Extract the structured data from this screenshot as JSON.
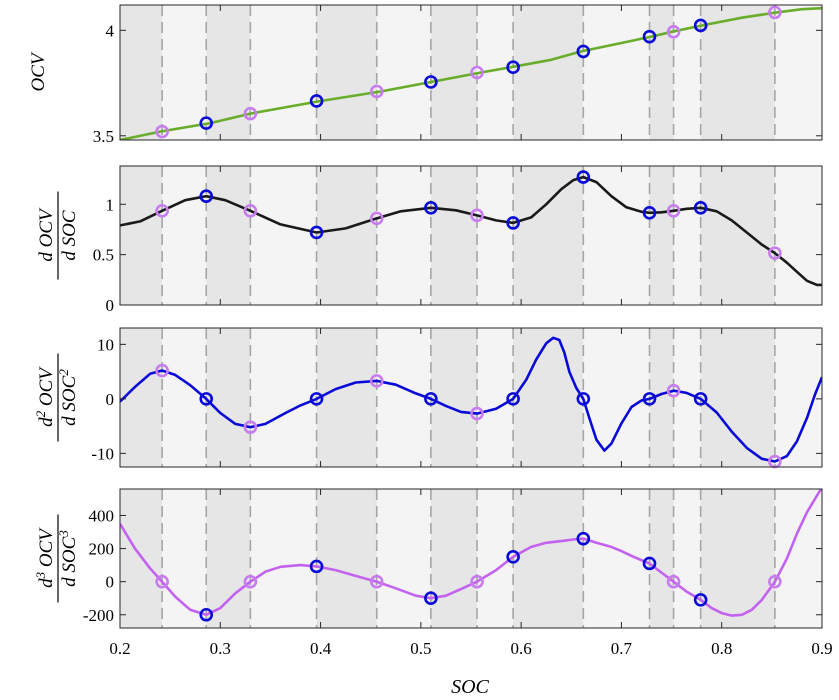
{
  "chart_data": [
    {
      "type": "line",
      "ylabel": "OCV",
      "ylabel_kind": "plain",
      "xlim": [
        0.2,
        0.9
      ],
      "ylim": [
        3.48,
        4.12
      ],
      "yticks": [
        3.5,
        4.0
      ],
      "ytick_labels": [
        "3.5",
        "4"
      ],
      "line_color": "#6aac2b",
      "curve_x": [
        0.2,
        0.24,
        0.29,
        0.33,
        0.4,
        0.46,
        0.51,
        0.56,
        0.59,
        0.63,
        0.66,
        0.7,
        0.73,
        0.75,
        0.78,
        0.82,
        0.855,
        0.88,
        0.9
      ],
      "curve_y": [
        3.48,
        3.52,
        3.56,
        3.605,
        3.665,
        3.71,
        3.755,
        3.8,
        3.825,
        3.86,
        3.9,
        3.94,
        3.97,
        3.993,
        4.023,
        4.06,
        4.085,
        4.1,
        4.105
      ],
      "markers": [
        {
          "x": 0.242,
          "y": 3.52,
          "color": "#c77cf0"
        },
        {
          "x": 0.286,
          "y": 3.56,
          "color": "#0a0ad8"
        },
        {
          "x": 0.33,
          "y": 3.605,
          "color": "#c77cf0"
        },
        {
          "x": 0.396,
          "y": 3.665,
          "color": "#0a0ad8"
        },
        {
          "x": 0.456,
          "y": 3.71,
          "color": "#c77cf0"
        },
        {
          "x": 0.51,
          "y": 3.755,
          "color": "#0a0ad8"
        },
        {
          "x": 0.556,
          "y": 3.8,
          "color": "#c77cf0"
        },
        {
          "x": 0.592,
          "y": 3.825,
          "color": "#0a0ad8"
        },
        {
          "x": 0.662,
          "y": 3.9,
          "color": "#0a0ad8"
        },
        {
          "x": 0.728,
          "y": 3.97,
          "color": "#0a0ad8"
        },
        {
          "x": 0.752,
          "y": 3.993,
          "color": "#c77cf0"
        },
        {
          "x": 0.779,
          "y": 4.023,
          "color": "#0a0ad8"
        },
        {
          "x": 0.853,
          "y": 4.085,
          "color": "#c77cf0"
        }
      ]
    },
    {
      "type": "line",
      "ylabel": "d OCV / d SOC",
      "ylabel_kind": "fraction",
      "ylabel_num": "d OCV",
      "ylabel_den": "d SOC",
      "ylabel_power": "",
      "xlim": [
        0.2,
        0.9
      ],
      "ylim": [
        0,
        1.38
      ],
      "yticks": [
        0,
        0.5,
        1
      ],
      "ytick_labels": [
        "0",
        "0.5",
        "1"
      ],
      "line_color": "#1a1a1a",
      "curve_x": [
        0.2,
        0.22,
        0.242,
        0.265,
        0.286,
        0.305,
        0.33,
        0.36,
        0.396,
        0.425,
        0.456,
        0.48,
        0.51,
        0.535,
        0.556,
        0.575,
        0.592,
        0.61,
        0.625,
        0.64,
        0.652,
        0.662,
        0.675,
        0.69,
        0.705,
        0.72,
        0.728,
        0.74,
        0.752,
        0.765,
        0.779,
        0.795,
        0.81,
        0.825,
        0.84,
        0.853,
        0.865,
        0.875,
        0.885,
        0.895,
        0.9
      ],
      "curve_y": [
        0.79,
        0.83,
        0.935,
        1.04,
        1.08,
        1.04,
        0.935,
        0.8,
        0.72,
        0.76,
        0.86,
        0.93,
        0.965,
        0.94,
        0.89,
        0.84,
        0.815,
        0.87,
        1.0,
        1.15,
        1.24,
        1.27,
        1.22,
        1.08,
        0.97,
        0.925,
        0.915,
        0.92,
        0.935,
        0.955,
        0.965,
        0.93,
        0.84,
        0.72,
        0.6,
        0.515,
        0.42,
        0.33,
        0.24,
        0.2,
        0.2
      ],
      "markers": [
        {
          "x": 0.242,
          "y": 0.935,
          "color": "#c77cf0"
        },
        {
          "x": 0.286,
          "y": 1.08,
          "color": "#0a0ad8"
        },
        {
          "x": 0.33,
          "y": 0.935,
          "color": "#c77cf0"
        },
        {
          "x": 0.396,
          "y": 0.72,
          "color": "#0a0ad8"
        },
        {
          "x": 0.456,
          "y": 0.86,
          "color": "#c77cf0"
        },
        {
          "x": 0.51,
          "y": 0.965,
          "color": "#0a0ad8"
        },
        {
          "x": 0.556,
          "y": 0.89,
          "color": "#c77cf0"
        },
        {
          "x": 0.592,
          "y": 0.815,
          "color": "#0a0ad8"
        },
        {
          "x": 0.662,
          "y": 1.27,
          "color": "#0a0ad8"
        },
        {
          "x": 0.728,
          "y": 0.915,
          "color": "#0a0ad8"
        },
        {
          "x": 0.752,
          "y": 0.935,
          "color": "#c77cf0"
        },
        {
          "x": 0.779,
          "y": 0.965,
          "color": "#0a0ad8"
        },
        {
          "x": 0.853,
          "y": 0.515,
          "color": "#c77cf0"
        }
      ]
    },
    {
      "type": "line",
      "ylabel": "d2 OCV / d SOC2",
      "ylabel_kind": "fraction",
      "ylabel_num": "d OCV",
      "ylabel_den": "d SOC",
      "ylabel_power": "2",
      "xlim": [
        0.2,
        0.9
      ],
      "ylim": [
        -12.5,
        13
      ],
      "yticks": [
        -10,
        0,
        10
      ],
      "ytick_labels": [
        "-10",
        "0",
        "10"
      ],
      "line_color": "#0a0ad8",
      "curve_x": [
        0.2,
        0.215,
        0.23,
        0.242,
        0.255,
        0.27,
        0.286,
        0.3,
        0.315,
        0.33,
        0.345,
        0.365,
        0.38,
        0.396,
        0.415,
        0.435,
        0.456,
        0.475,
        0.495,
        0.51,
        0.525,
        0.54,
        0.556,
        0.575,
        0.592,
        0.605,
        0.615,
        0.625,
        0.632,
        0.638,
        0.643,
        0.648,
        0.655,
        0.662,
        0.668,
        0.675,
        0.683,
        0.69,
        0.7,
        0.71,
        0.72,
        0.728,
        0.74,
        0.752,
        0.765,
        0.779,
        0.795,
        0.81,
        0.825,
        0.84,
        0.853,
        0.865,
        0.875,
        0.885,
        0.893,
        0.9
      ],
      "curve_y": [
        -0.5,
        2.2,
        4.6,
        5.2,
        4.4,
        2.5,
        0,
        -2.6,
        -4.6,
        -5.2,
        -4.6,
        -2.6,
        -1.2,
        0,
        1.8,
        3.0,
        3.3,
        2.6,
        1.0,
        0,
        -1.3,
        -2.4,
        -2.7,
        -1.8,
        0,
        3.5,
        7.2,
        10.2,
        11.2,
        10.8,
        8.5,
        5.0,
        2.0,
        0,
        -3.5,
        -7.5,
        -9.5,
        -8.2,
        -4.5,
        -1.5,
        -0.3,
        0,
        0.9,
        1.5,
        1.1,
        0,
        -2.5,
        -6.0,
        -9.0,
        -11.0,
        -11.5,
        -10.5,
        -7.8,
        -3.5,
        0.8,
        4.0
      ],
      "markers": [
        {
          "x": 0.242,
          "y": 5.2,
          "color": "#c77cf0"
        },
        {
          "x": 0.286,
          "y": 0,
          "color": "#0a0ad8"
        },
        {
          "x": 0.33,
          "y": -5.2,
          "color": "#c77cf0"
        },
        {
          "x": 0.396,
          "y": 0,
          "color": "#0a0ad8"
        },
        {
          "x": 0.456,
          "y": 3.3,
          "color": "#c77cf0"
        },
        {
          "x": 0.51,
          "y": 0,
          "color": "#0a0ad8"
        },
        {
          "x": 0.556,
          "y": -2.7,
          "color": "#c77cf0"
        },
        {
          "x": 0.592,
          "y": 0,
          "color": "#0a0ad8"
        },
        {
          "x": 0.662,
          "y": 0,
          "color": "#0a0ad8"
        },
        {
          "x": 0.728,
          "y": 0,
          "color": "#0a0ad8"
        },
        {
          "x": 0.752,
          "y": 1.5,
          "color": "#c77cf0"
        },
        {
          "x": 0.779,
          "y": 0,
          "color": "#0a0ad8"
        },
        {
          "x": 0.853,
          "y": -11.5,
          "color": "#c77cf0"
        }
      ]
    },
    {
      "type": "line",
      "ylabel": "d3 OCV / d SOC3",
      "ylabel_kind": "fraction",
      "ylabel_num": "d OCV",
      "ylabel_den": "d SOC",
      "ylabel_power": "3",
      "xlim": [
        0.2,
        0.9
      ],
      "ylim": [
        -280,
        560
      ],
      "yticks": [
        -200,
        0,
        200,
        400
      ],
      "ytick_labels": [
        "-200",
        "0",
        "200",
        "400"
      ],
      "xticks": [
        0.2,
        0.3,
        0.4,
        0.5,
        0.6,
        0.7,
        0.8,
        0.9
      ],
      "xtick_labels": [
        "0.2",
        "0.3",
        "0.4",
        "0.5",
        "0.6",
        "0.7",
        "0.8",
        "0.9"
      ],
      "xlabel": "SOC",
      "line_color": "#c462f0",
      "curve_x": [
        0.2,
        0.215,
        0.23,
        0.242,
        0.255,
        0.27,
        0.286,
        0.3,
        0.315,
        0.33,
        0.345,
        0.36,
        0.38,
        0.396,
        0.415,
        0.435,
        0.456,
        0.475,
        0.495,
        0.51,
        0.525,
        0.54,
        0.556,
        0.575,
        0.592,
        0.61,
        0.625,
        0.64,
        0.652,
        0.662,
        0.675,
        0.69,
        0.7,
        0.712,
        0.728,
        0.74,
        0.752,
        0.765,
        0.779,
        0.79,
        0.8,
        0.81,
        0.82,
        0.83,
        0.84,
        0.853,
        0.865,
        0.875,
        0.885,
        0.895,
        0.9
      ],
      "curve_y": [
        350,
        200,
        80,
        0,
        -90,
        -170,
        -200,
        -160,
        -70,
        0,
        60,
        90,
        100,
        92,
        70,
        35,
        0,
        -40,
        -85,
        -100,
        -85,
        -45,
        0,
        70,
        150,
        210,
        235,
        245,
        255,
        260,
        235,
        210,
        185,
        150,
        110,
        55,
        0,
        -60,
        -110,
        -160,
        -190,
        -205,
        -200,
        -170,
        -110,
        0,
        140,
        290,
        420,
        520,
        570
      ],
      "markers": [
        {
          "x": 0.242,
          "y": 0,
          "color": "#c77cf0"
        },
        {
          "x": 0.286,
          "y": -200,
          "color": "#0a0ad8"
        },
        {
          "x": 0.33,
          "y": 0,
          "color": "#c77cf0"
        },
        {
          "x": 0.396,
          "y": 92,
          "color": "#0a0ad8"
        },
        {
          "x": 0.456,
          "y": 0,
          "color": "#c77cf0"
        },
        {
          "x": 0.51,
          "y": -100,
          "color": "#0a0ad8"
        },
        {
          "x": 0.556,
          "y": 0,
          "color": "#c77cf0"
        },
        {
          "x": 0.592,
          "y": 150,
          "color": "#0a0ad8"
        },
        {
          "x": 0.662,
          "y": 260,
          "color": "#0a0ad8"
        },
        {
          "x": 0.728,
          "y": 110,
          "color": "#0a0ad8"
        },
        {
          "x": 0.752,
          "y": 0,
          "color": "#c77cf0"
        },
        {
          "x": 0.779,
          "y": -110,
          "color": "#0a0ad8"
        },
        {
          "x": 0.853,
          "y": 0,
          "color": "#c77cf0"
        }
      ]
    }
  ],
  "shading": {
    "bands": [
      [
        0.2,
        0.242
      ],
      [
        0.286,
        0.33
      ],
      [
        0.396,
        0.456
      ],
      [
        0.51,
        0.556
      ],
      [
        0.592,
        0.662
      ],
      [
        0.728,
        0.752
      ],
      [
        0.779,
        0.853
      ]
    ],
    "vlines": [
      0.242,
      0.286,
      0.33,
      0.396,
      0.456,
      0.51,
      0.556,
      0.592,
      0.662,
      0.728,
      0.752,
      0.779,
      0.853
    ],
    "band_color": "#e6e6e6",
    "background_color": "#f4f4f4",
    "vline_color": "#a6a6a6"
  },
  "grid": false,
  "legend": "none"
}
